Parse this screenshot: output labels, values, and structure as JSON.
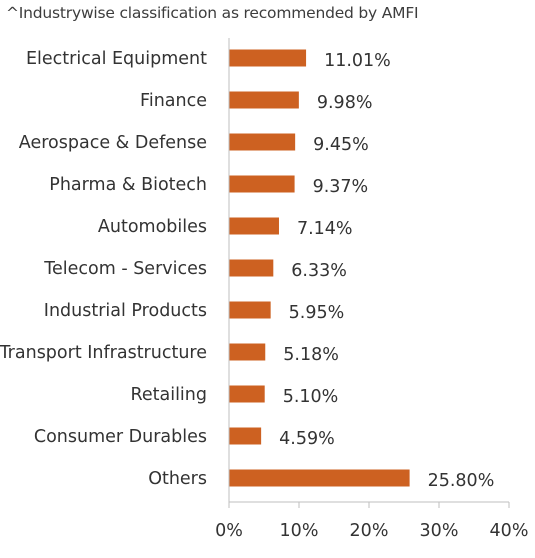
{
  "footnote": "^Industrywise classification as recommended by AMFI",
  "chart_data": {
    "type": "bar",
    "orientation": "horizontal",
    "title": "",
    "xlabel": "",
    "ylabel": "",
    "categories": [
      "Electrical Equipment",
      "Finance",
      "Aerospace & Defense",
      "Pharma & Biotech",
      "Automobiles",
      "Telecom - Services",
      "Industrial Products",
      "Transport Infrastructure",
      "Retailing",
      "Consumer Durables",
      "Others"
    ],
    "values": [
      11.01,
      9.98,
      9.45,
      9.37,
      7.14,
      6.33,
      5.95,
      5.18,
      5.1,
      4.59,
      25.8
    ],
    "data_labels": [
      "11.01%",
      "9.98%",
      "9.45%",
      "9.37%",
      "7.14%",
      "6.33%",
      "5.95%",
      "5.18%",
      "5.10%",
      "4.59%",
      "25.80%"
    ],
    "xlim": [
      0,
      40
    ],
    "x_ticks": [
      "0%",
      "10%",
      "20%",
      "30%",
      "40%"
    ],
    "grid": false,
    "bar_color": "#cd6121",
    "axis_color": "#bfbfbf"
  }
}
